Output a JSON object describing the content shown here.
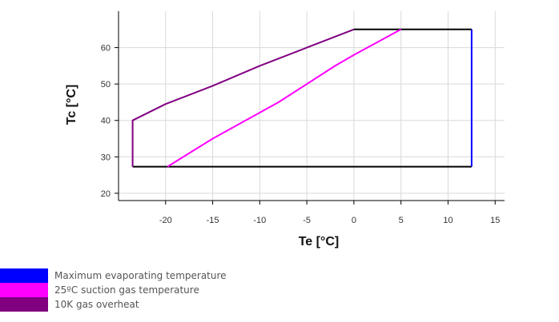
{
  "chart_data": {
    "type": "line",
    "xlabel": "Te [°C]",
    "ylabel": "Tc [°C]",
    "xlim": [
      -25,
      16
    ],
    "ylim": [
      18,
      70
    ],
    "xticks": [
      -20,
      -15,
      -10,
      -5,
      0,
      5,
      10,
      15
    ],
    "yticks": [
      20,
      30,
      40,
      50,
      60
    ],
    "grid": true,
    "legend_position": "bottom-left",
    "series": [
      {
        "name": "Maximum evaporating temperature",
        "color": "#0000ff",
        "x": [
          12.5,
          12.5
        ],
        "y": [
          65,
          27.3
        ]
      },
      {
        "name": "25ºC suction gas temperature",
        "color": "#ff00ff",
        "x": [
          -19.8,
          -15,
          -8,
          -2,
          0,
          5
        ],
        "y": [
          27.3,
          35,
          45,
          55,
          58,
          65
        ]
      },
      {
        "name": "10K gas overheat",
        "color": "#800080",
        "x": [
          -23.5,
          -23.5,
          -20,
          -15,
          -10,
          -5,
          0
        ],
        "y": [
          27.3,
          40,
          44.5,
          49.5,
          55,
          60,
          65
        ]
      },
      {
        "color": "#000000",
        "x": [
          -23.5,
          12.5
        ],
        "y": [
          27.3,
          27.3
        ]
      },
      {
        "color": "#000000",
        "x": [
          0,
          12.5
        ],
        "y": [
          65,
          65
        ]
      }
    ]
  }
}
